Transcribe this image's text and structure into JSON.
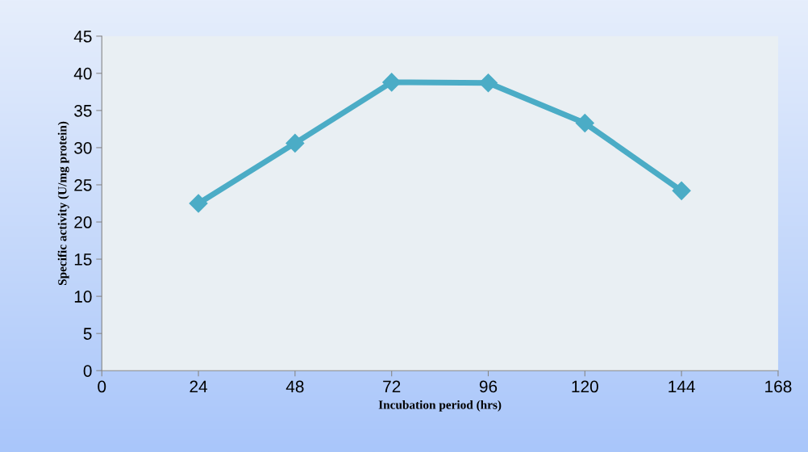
{
  "chart_data": {
    "type": "line",
    "xlabel": "Incubation period (hrs)",
    "ylabel": "Specific activity (U/mg protein)",
    "x": [
      24,
      48,
      72,
      96,
      120,
      144
    ],
    "series": [
      {
        "color": "#4bacc6",
        "values": [
          22.5,
          30.6,
          38.8,
          38.7,
          33.3,
          24.2
        ]
      }
    ],
    "xlim": [
      0,
      168
    ],
    "xticks": [
      0,
      24,
      48,
      72,
      96,
      120,
      144,
      168
    ],
    "ylim": [
      0,
      45
    ],
    "yticks": [
      0,
      5,
      10,
      15,
      20,
      25,
      30,
      35,
      40,
      45
    ],
    "marker": "diamond",
    "line_style": "solid",
    "grid": false,
    "legend": false
  }
}
